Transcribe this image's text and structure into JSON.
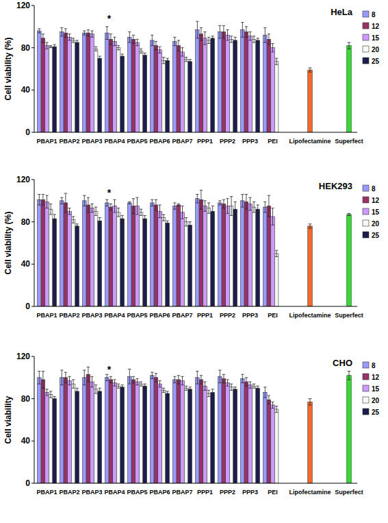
{
  "chart_data": [
    {
      "type": "bar",
      "title": "HeLa",
      "y_label": "Cell viability (%)",
      "grid": false,
      "legend": "right",
      "ylim": [
        0,
        120
      ],
      "yticks": [
        0,
        40,
        80,
        120
      ],
      "categories": [
        "PBAP1",
        "PBAP2",
        "PBAP3",
        "PBAP4",
        "PBAP5",
        "PBAP6",
        "PBAP7",
        "PPP1",
        "PPP2",
        "PPP3",
        "PEI",
        "Lipofectamine",
        "Superfect"
      ],
      "annotations": [
        {
          "text": "*",
          "category": "PBAP4"
        }
      ],
      "series": [
        {
          "name": "8",
          "color": "#9999ff",
          "values": [
            96,
            95,
            94,
            94,
            90,
            87,
            86,
            97,
            95,
            97,
            92,
            null,
            null
          ],
          "errors": [
            2,
            4,
            2,
            6,
            5,
            5,
            4,
            8,
            6,
            7,
            7,
            null,
            null
          ]
        },
        {
          "name": "12",
          "color": "#993366",
          "values": [
            89,
            94,
            94,
            88,
            88,
            82,
            82,
            93,
            95,
            95,
            88,
            null,
            null
          ],
          "errors": [
            4,
            4,
            3,
            5,
            4,
            4,
            5,
            6,
            6,
            5,
            5,
            null,
            null
          ]
        },
        {
          "name": "15",
          "color": "#cc99ff",
          "values": [
            82,
            90,
            93,
            86,
            85,
            78,
            76,
            89,
            92,
            91,
            80,
            null,
            null
          ],
          "errors": [
            3,
            3,
            3,
            4,
            3,
            3,
            4,
            6,
            5,
            4,
            4,
            null,
            null
          ]
        },
        {
          "name": "20",
          "color": "#f4fbf4",
          "values": [
            81,
            87,
            79,
            80,
            77,
            68,
            69,
            87,
            88,
            88,
            67,
            null,
            null
          ],
          "errors": [
            1,
            2,
            2,
            2,
            2,
            3,
            2,
            3,
            3,
            3,
            3,
            null,
            null
          ]
        },
        {
          "name": "25",
          "color": "#1c1c4e",
          "values": [
            81,
            85,
            70,
            72,
            73,
            68,
            67,
            89,
            87,
            87,
            null,
            null,
            null
          ],
          "errors": [
            2,
            2,
            2,
            2,
            2,
            2,
            2,
            2,
            3,
            2,
            null,
            null,
            null
          ]
        }
      ],
      "controls": {
        "values": [
          null,
          null,
          null,
          null,
          null,
          null,
          null,
          null,
          null,
          null,
          null,
          59,
          82
        ],
        "errors": [
          null,
          null,
          null,
          null,
          null,
          null,
          null,
          null,
          null,
          null,
          null,
          2,
          3
        ],
        "colors": [
          null,
          null,
          null,
          null,
          null,
          null,
          null,
          null,
          null,
          null,
          null,
          "#f26b2a",
          "#33dd33"
        ]
      }
    },
    {
      "type": "bar",
      "title": "HEK293",
      "y_label": "Cell viability (%)",
      "grid": false,
      "legend": "right",
      "ylim": [
        0,
        120
      ],
      "yticks": [
        0,
        40,
        80,
        120
      ],
      "categories": [
        "PBAP1",
        "PBAP2",
        "PBAP3",
        "PBAP4",
        "PBAP5",
        "PBAP6",
        "PBAP7",
        "PPP1",
        "PPP2",
        "PPP3",
        "PEI",
        "Lipofectamine",
        "Superfect"
      ],
      "annotations": [
        {
          "text": "*",
          "category": "PBAP4"
        }
      ],
      "series": [
        {
          "name": "8",
          "color": "#9999ff",
          "values": [
            101,
            100,
            100,
            98,
            98,
            98,
            95,
            102,
            98,
            100,
            94,
            null,
            null
          ],
          "errors": [
            5,
            3,
            5,
            3,
            1,
            3,
            3,
            4,
            2,
            6,
            5,
            null,
            null
          ]
        },
        {
          "name": "12",
          "color": "#993366",
          "values": [
            101,
            98,
            96,
            94,
            95,
            96,
            96,
            101,
            97,
            99,
            95,
            null,
            null
          ],
          "errors": [
            5,
            9,
            7,
            3,
            7,
            5,
            1,
            9,
            4,
            7,
            10,
            null,
            null
          ]
        },
        {
          "name": "15",
          "color": "#cc99ff",
          "values": [
            99,
            90,
            93,
            95,
            95,
            90,
            89,
            95,
            95,
            97,
            85,
            null,
            null
          ],
          "errors": [
            6,
            3,
            4,
            6,
            8,
            6,
            6,
            5,
            7,
            6,
            8,
            null,
            null
          ]
        },
        {
          "name": "20",
          "color": "#f4fbf4",
          "values": [
            92,
            82,
            90,
            89,
            89,
            84,
            80,
            93,
            95,
            94,
            50,
            null,
            null
          ],
          "errors": [
            5,
            3,
            4,
            4,
            3,
            3,
            4,
            5,
            9,
            5,
            3,
            null,
            null
          ]
        },
        {
          "name": "25",
          "color": "#1c1c4e",
          "values": [
            83,
            76,
            81,
            83,
            83,
            79,
            77,
            90,
            92,
            92,
            null,
            null,
            null
          ],
          "errors": [
            4,
            2,
            3,
            3,
            3,
            2,
            3,
            5,
            7,
            4,
            null,
            null,
            null
          ]
        }
      ],
      "controls": {
        "values": [
          null,
          null,
          null,
          null,
          null,
          null,
          null,
          null,
          null,
          null,
          null,
          76,
          87
        ],
        "errors": [
          null,
          null,
          null,
          null,
          null,
          null,
          null,
          null,
          null,
          null,
          null,
          2,
          1
        ],
        "colors": [
          null,
          null,
          null,
          null,
          null,
          null,
          null,
          null,
          null,
          null,
          null,
          "#f26b2a",
          "#33dd33"
        ]
      }
    },
    {
      "type": "bar",
      "title": "CHO",
      "y_label": "Cell viability",
      "grid": false,
      "legend": "right",
      "ylim": [
        0,
        120
      ],
      "yticks": [
        0,
        40,
        80,
        120
      ],
      "categories": [
        "PBAP1",
        "PBAP2",
        "PBAP3",
        "PBAP4",
        "PBAP5",
        "PBAP6",
        "PBAP7",
        "PPP1",
        "PPP2",
        "PPP3",
        "PEI",
        "Lipofectamine",
        "Superfect"
      ],
      "annotations": [
        {
          "text": "*",
          "category": "PBAP4"
        }
      ],
      "series": [
        {
          "name": "8",
          "color": "#9999ff",
          "values": [
            100,
            100,
            100,
            100,
            101,
            102,
            98,
            100,
            101,
            99,
            86,
            null,
            null
          ],
          "errors": [
            6,
            7,
            7,
            3,
            7,
            3,
            3,
            6,
            6,
            4,
            5,
            null,
            null
          ]
        },
        {
          "name": "12",
          "color": "#993366",
          "values": [
            98,
            100,
            103,
            98,
            98,
            100,
            98,
            98,
            99,
            96,
            79,
            null,
            null
          ],
          "errors": [
            8,
            5,
            7,
            3,
            3,
            4,
            4,
            4,
            4,
            4,
            4,
            null,
            null
          ]
        },
        {
          "name": "15",
          "color": "#cc99ff",
          "values": [
            86,
            97,
            96,
            95,
            96,
            94,
            97,
            92,
            95,
            93,
            74,
            null,
            null
          ],
          "errors": [
            3,
            4,
            5,
            3,
            3,
            3,
            4,
            4,
            3,
            3,
            3,
            null,
            null
          ]
        },
        {
          "name": "20",
          "color": "#f4fbf4",
          "values": [
            84,
            94,
            89,
            92,
            94,
            88,
            90,
            85,
            91,
            92,
            70,
            null,
            null
          ],
          "errors": [
            3,
            4,
            4,
            2,
            2,
            2,
            2,
            3,
            3,
            2,
            3,
            null,
            null
          ]
        },
        {
          "name": "25",
          "color": "#1c1c4e",
          "values": [
            80,
            87,
            87,
            91,
            92,
            85,
            89,
            86,
            89,
            90,
            null,
            null,
            null
          ],
          "errors": [
            2,
            3,
            3,
            2,
            2,
            2,
            2,
            3,
            2,
            2,
            null,
            null,
            null
          ]
        }
      ],
      "controls": {
        "values": [
          null,
          null,
          null,
          null,
          null,
          null,
          null,
          null,
          null,
          null,
          null,
          77,
          102
        ],
        "errors": [
          null,
          null,
          null,
          null,
          null,
          null,
          null,
          null,
          null,
          null,
          null,
          3,
          4
        ],
        "colors": [
          null,
          null,
          null,
          null,
          null,
          null,
          null,
          null,
          null,
          null,
          null,
          "#f26b2a",
          "#33dd33"
        ]
      }
    }
  ]
}
